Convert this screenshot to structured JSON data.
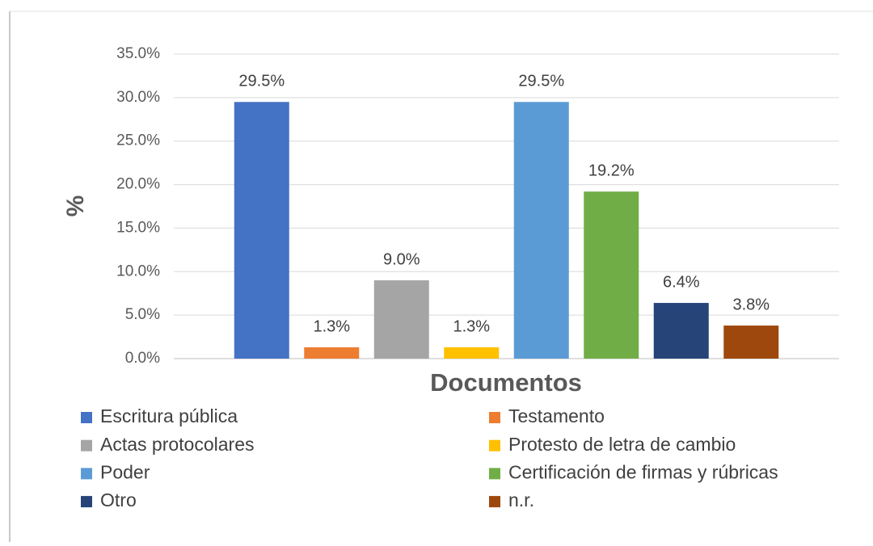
{
  "chart_data": {
    "type": "bar",
    "y_label": "%",
    "x_label": "Documentos",
    "categories": [
      null
    ],
    "series": [
      {
        "name": "Escritura pública",
        "color": "#4472c4",
        "values": [
          29.5
        ],
        "value_labels": [
          "29.5%"
        ]
      },
      {
        "name": "Testamento",
        "color": "#ed7d31",
        "values": [
          1.3
        ],
        "value_labels": [
          "1.3%"
        ]
      },
      {
        "name": "Actas protocolares",
        "color": "#a5a5a5",
        "values": [
          9.0
        ],
        "value_labels": [
          "9.0%"
        ]
      },
      {
        "name": "Protesto de letra de cambio",
        "color": "#ffc000",
        "values": [
          1.3
        ],
        "value_labels": [
          "1.3%"
        ]
      },
      {
        "name": "Poder",
        "color": "#5b9bd5",
        "values": [
          29.5
        ],
        "value_labels": [
          "29.5%"
        ]
      },
      {
        "name": "Certificación de firmas y rúbricas",
        "color": "#70ad47",
        "values": [
          19.2
        ],
        "value_labels": [
          "19.2%"
        ]
      },
      {
        "name": "Otro",
        "color": "#264478",
        "values": [
          6.4
        ],
        "value_labels": [
          "6.4%"
        ]
      },
      {
        "name": "n.r.",
        "color": "#9e480e",
        "values": [
          3.8
        ],
        "value_labels": [
          "3.8%"
        ]
      }
    ],
    "ylim": [
      0,
      35
    ],
    "yticks": [
      {
        "value": 0,
        "label": "0.0%"
      },
      {
        "value": 5,
        "label": "5.0%"
      },
      {
        "value": 10,
        "label": "10.0%"
      },
      {
        "value": 15,
        "label": "15.0%"
      },
      {
        "value": 20,
        "label": "20.0%"
      },
      {
        "value": 25,
        "label": "25.0%"
      },
      {
        "value": 30,
        "label": "30.0%"
      },
      {
        "value": 35,
        "label": "35.0%"
      }
    ],
    "grid": true,
    "legend": "bottom"
  }
}
